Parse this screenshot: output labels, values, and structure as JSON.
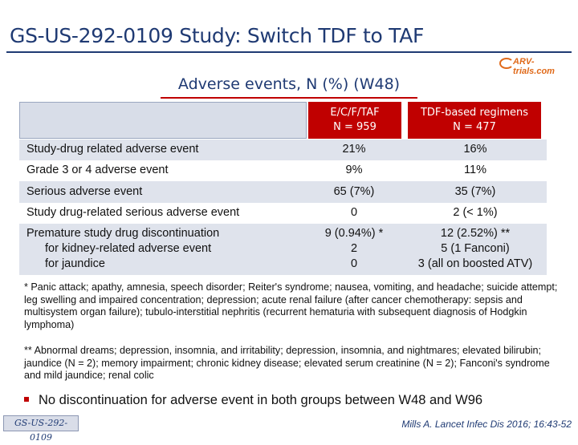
{
  "title": "GS-US-292-0109 Study: Switch TDF to TAF",
  "logo_text": "ARV-trials.com",
  "subtitle": "Adverse events, N (%) (W48)",
  "table": {
    "columns": [
      {
        "line1": "E/C/F/TAF",
        "line2": "N = 959"
      },
      {
        "line1": "TDF-based regimens",
        "line2": "N = 477"
      }
    ],
    "rows": [
      {
        "label": "Study-drug related adverse event",
        "c1": "21%",
        "c2": "16%"
      },
      {
        "label": "Grade 3 or 4 adverse event",
        "c1": "9%",
        "c2": "11%"
      },
      {
        "label": "Serious adverse event",
        "c1": "65 (7%)",
        "c2": "35 (7%)"
      },
      {
        "label": "Study drug-related serious  adverse event",
        "c1": "0",
        "c2": "2 (< 1%)"
      }
    ],
    "multi_row": {
      "labels": [
        "Premature study drug discontinuation",
        "for kidney-related adverse event",
        "for jaundice"
      ],
      "c1": [
        "9 (0.94%) *",
        "2",
        "0"
      ],
      "c2": [
        "12 (2.52%) **",
        "5 (1 Fanconi)",
        "3 (all on boosted ATV)"
      ]
    }
  },
  "footnote1": "* Panic attack; apathy, amnesia, speech disorder; Reiter's syndrome; nausea, vomiting, and headache; suicide attempt; leg swelling and impaired concentration; depression; acute renal failure (after cancer chemotherapy: sepsis and multisystem organ failure); tubulo-interstitial nephritis (recurrent hematuria with subsequent diagnosis of Hodgkin lymphoma)",
  "footnote2": "** Abnormal dreams; depression, insomnia, and irritability; depression, insomnia, and nightmares; elevated bilirubin; jaundice (N = 2); memory impairment; chronic kidney disease; elevated serum creatinine (N = 2); Fanconi's syndrome and mild jaundice; renal colic",
  "bullet": "No discontinuation for adverse event in both groups between W48 and W96",
  "footer_tag": "GS-US-292-0109",
  "citation": "Mills A. Lancet Infec Dis 2016; 16:43-52",
  "colors": {
    "navy": "#1f3a73",
    "red": "#c00000",
    "row_shade": "#dfe3ec",
    "logo_orange": "#e06a1a"
  }
}
